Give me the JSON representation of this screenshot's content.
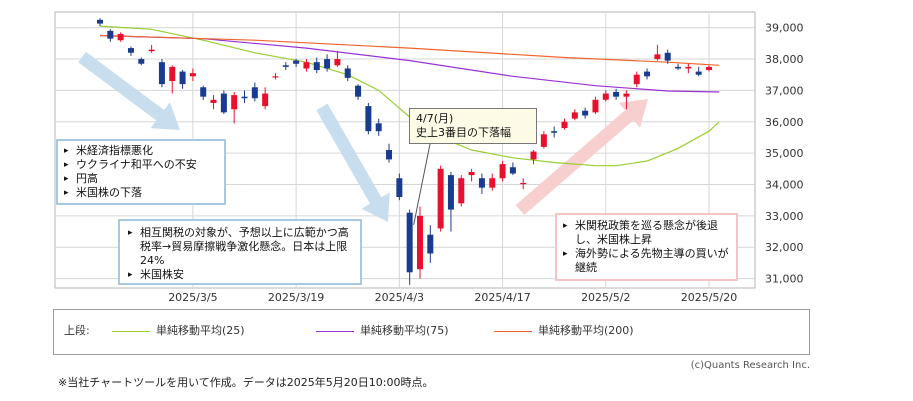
{
  "chart_data": {
    "type": "candlestick",
    "x_tick_labels": [
      "2025/3/5",
      "2025/3/19",
      "2025/4/3",
      "2025/4/17",
      "2025/5/2",
      "2025/5/20"
    ],
    "x_tick_index": [
      9,
      19,
      29,
      39,
      49,
      59
    ],
    "y_tick_labels": [
      "31,000",
      "32,000",
      "33,000",
      "34,000",
      "35,000",
      "36,000",
      "37,000",
      "38,000",
      "39,000"
    ],
    "ylim": [
      30700,
      39500
    ],
    "grid": true,
    "colors": {
      "up": "#e8112d",
      "down": "#1a3c8f",
      "ma25": "#9acd32",
      "ma75": "#9b30d6",
      "ma200": "#f0642d"
    },
    "candles": [
      {
        "o": 39250,
        "c": 39130,
        "h": 39300,
        "l": 39050
      },
      {
        "o": 38900,
        "c": 38650,
        "h": 38950,
        "l": 38550
      },
      {
        "o": 38600,
        "c": 38800,
        "h": 38850,
        "l": 38550
      },
      {
        "o": 38350,
        "c": 38200,
        "h": 38400,
        "l": 38100
      },
      {
        "o": 38000,
        "c": 37850,
        "h": 38050,
        "l": 37800
      },
      {
        "o": 38250,
        "c": 38300,
        "h": 38450,
        "l": 38200
      },
      {
        "o": 37900,
        "c": 37200,
        "h": 38000,
        "l": 37100
      },
      {
        "o": 37300,
        "c": 37750,
        "h": 37800,
        "l": 36900
      },
      {
        "o": 37600,
        "c": 37200,
        "h": 37650,
        "l": 37050
      },
      {
        "o": 37450,
        "c": 37550,
        "h": 37700,
        "l": 37300
      },
      {
        "o": 37100,
        "c": 36800,
        "h": 37150,
        "l": 36700
      },
      {
        "o": 36600,
        "c": 36700,
        "h": 36850,
        "l": 36400
      },
      {
        "o": 36900,
        "c": 36300,
        "h": 37000,
        "l": 36250
      },
      {
        "o": 36400,
        "c": 36850,
        "h": 36950,
        "l": 35950
      },
      {
        "o": 36800,
        "c": 36750,
        "h": 37000,
        "l": 36600
      },
      {
        "o": 37100,
        "c": 36750,
        "h": 37250,
        "l": 36650
      },
      {
        "o": 36500,
        "c": 36900,
        "h": 37100,
        "l": 36400
      },
      {
        "o": 37450,
        "c": 37450,
        "h": 37550,
        "l": 37350
      },
      {
        "o": 37800,
        "c": 37750,
        "h": 37900,
        "l": 37650
      },
      {
        "o": 37950,
        "c": 37850,
        "h": 38000,
        "l": 37750
      },
      {
        "o": 37700,
        "c": 37900,
        "h": 38000,
        "l": 37600
      },
      {
        "o": 37900,
        "c": 37650,
        "h": 38050,
        "l": 37550
      },
      {
        "o": 38000,
        "c": 37700,
        "h": 38150,
        "l": 37600
      },
      {
        "o": 37800,
        "c": 38000,
        "h": 38250,
        "l": 37750
      },
      {
        "o": 37700,
        "c": 37400,
        "h": 37800,
        "l": 37300
      },
      {
        "o": 37150,
        "c": 36800,
        "h": 37200,
        "l": 36700
      },
      {
        "o": 36500,
        "c": 35700,
        "h": 36600,
        "l": 35600
      },
      {
        "o": 35950,
        "c": 35700,
        "h": 36100,
        "l": 35550
      },
      {
        "o": 35100,
        "c": 34800,
        "h": 35300,
        "l": 34700
      },
      {
        "o": 34200,
        "c": 33600,
        "h": 34350,
        "l": 33500
      },
      {
        "o": 33100,
        "c": 31200,
        "h": 33200,
        "l": 30800
      },
      {
        "o": 31300,
        "c": 33000,
        "h": 33300,
        "l": 31000
      },
      {
        "o": 32400,
        "c": 31800,
        "h": 32700,
        "l": 31500
      },
      {
        "o": 32600,
        "c": 34500,
        "h": 34600,
        "l": 32500
      },
      {
        "o": 34300,
        "c": 33200,
        "h": 34400,
        "l": 32500
      },
      {
        "o": 33400,
        "c": 34200,
        "h": 34300,
        "l": 33300
      },
      {
        "o": 34300,
        "c": 34400,
        "h": 34500,
        "l": 34100
      },
      {
        "o": 34200,
        "c": 33900,
        "h": 34350,
        "l": 33700
      },
      {
        "o": 33900,
        "c": 34200,
        "h": 34350,
        "l": 33800
      },
      {
        "o": 34200,
        "c": 34650,
        "h": 34750,
        "l": 34100
      },
      {
        "o": 34550,
        "c": 34350,
        "h": 34700,
        "l": 34300
      },
      {
        "o": 34050,
        "c": 34050,
        "h": 34200,
        "l": 33850
      },
      {
        "o": 34800,
        "c": 35050,
        "h": 35100,
        "l": 34650
      },
      {
        "o": 35200,
        "c": 35600,
        "h": 35700,
        "l": 35150
      },
      {
        "o": 35700,
        "c": 35650,
        "h": 35850,
        "l": 35500
      },
      {
        "o": 35800,
        "c": 36000,
        "h": 36100,
        "l": 35750
      },
      {
        "o": 36100,
        "c": 36300,
        "h": 36400,
        "l": 36050
      },
      {
        "o": 36350,
        "c": 36200,
        "h": 36450,
        "l": 36100
      },
      {
        "o": 36300,
        "c": 36700,
        "h": 36800,
        "l": 36250
      },
      {
        "o": 36700,
        "c": 36900,
        "h": 37000,
        "l": 36650
      },
      {
        "o": 36950,
        "c": 36800,
        "h": 37050,
        "l": 36700
      },
      {
        "o": 36800,
        "c": 36900,
        "h": 37000,
        "l": 36400
      },
      {
        "o": 37200,
        "c": 37500,
        "h": 37600,
        "l": 37100
      },
      {
        "o": 37600,
        "c": 37450,
        "h": 37700,
        "l": 37350
      },
      {
        "o": 38000,
        "c": 38150,
        "h": 38450,
        "l": 37950
      },
      {
        "o": 38200,
        "c": 37950,
        "h": 38300,
        "l": 37850
      },
      {
        "o": 37750,
        "c": 37700,
        "h": 37850,
        "l": 37650
      },
      {
        "o": 37700,
        "c": 37750,
        "h": 37850,
        "l": 37550
      },
      {
        "o": 37600,
        "c": 37500,
        "h": 37750,
        "l": 37450
      },
      {
        "o": 37650,
        "c": 37750,
        "h": 37800,
        "l": 37600
      }
    ],
    "series": [
      {
        "name": "単純移動平均(25)",
        "color": "#9acd32",
        "values": [
          [
            0,
            39050
          ],
          [
            5,
            38950
          ],
          [
            10,
            38600
          ],
          [
            15,
            38200
          ],
          [
            20,
            37900
          ],
          [
            24,
            37500
          ],
          [
            27,
            37000
          ],
          [
            30,
            36150
          ],
          [
            33,
            35500
          ],
          [
            36,
            35100
          ],
          [
            40,
            34850
          ],
          [
            44,
            34700
          ],
          [
            48,
            34600
          ],
          [
            50,
            34600
          ],
          [
            53,
            34750
          ],
          [
            56,
            35150
          ],
          [
            59,
            35700
          ],
          [
            60,
            36000
          ]
        ]
      },
      {
        "name": "単純移動平均(75)",
        "color": "#9b30d6",
        "values": [
          [
            0,
            38750
          ],
          [
            10,
            38650
          ],
          [
            20,
            38350
          ],
          [
            30,
            37950
          ],
          [
            40,
            37450
          ],
          [
            48,
            37150
          ],
          [
            55,
            36980
          ],
          [
            60,
            36950
          ]
        ]
      },
      {
        "name": "単純移動平均(200)",
        "color": "#f0642d",
        "values": [
          [
            0,
            38750
          ],
          [
            15,
            38600
          ],
          [
            30,
            38350
          ],
          [
            45,
            38050
          ],
          [
            55,
            37900
          ],
          [
            60,
            37800
          ]
        ]
      }
    ]
  },
  "annotations": {
    "box_macro": [
      "米経済指標悪化",
      "ウクライナ和平への不安",
      "円高",
      "米国株の下落"
    ],
    "box_tariff": [
      "相互関税の対象が、予想以上に広範かつ高税率→貿易摩擦戦争激化懸念。日本は上限24%",
      "米国株安"
    ],
    "box_recovery": [
      "米関税政策を巡る懸念が後退し、米国株上昇",
      "海外勢による先物主導の買いが継続"
    ],
    "callout_line1": "4/7(月)",
    "callout_line2": "史上3番目の下落幅"
  },
  "legend": {
    "prefix": "上段:",
    "ma25": "単純移動平均(25)",
    "ma75": "単純移動平均(75)",
    "ma200": "単純移動平均(200)"
  },
  "copyright": "(c)Quants Research Inc.",
  "footnote": "※当社チャートツールを用いて作成。データは2025年5月20日10:00時点。"
}
